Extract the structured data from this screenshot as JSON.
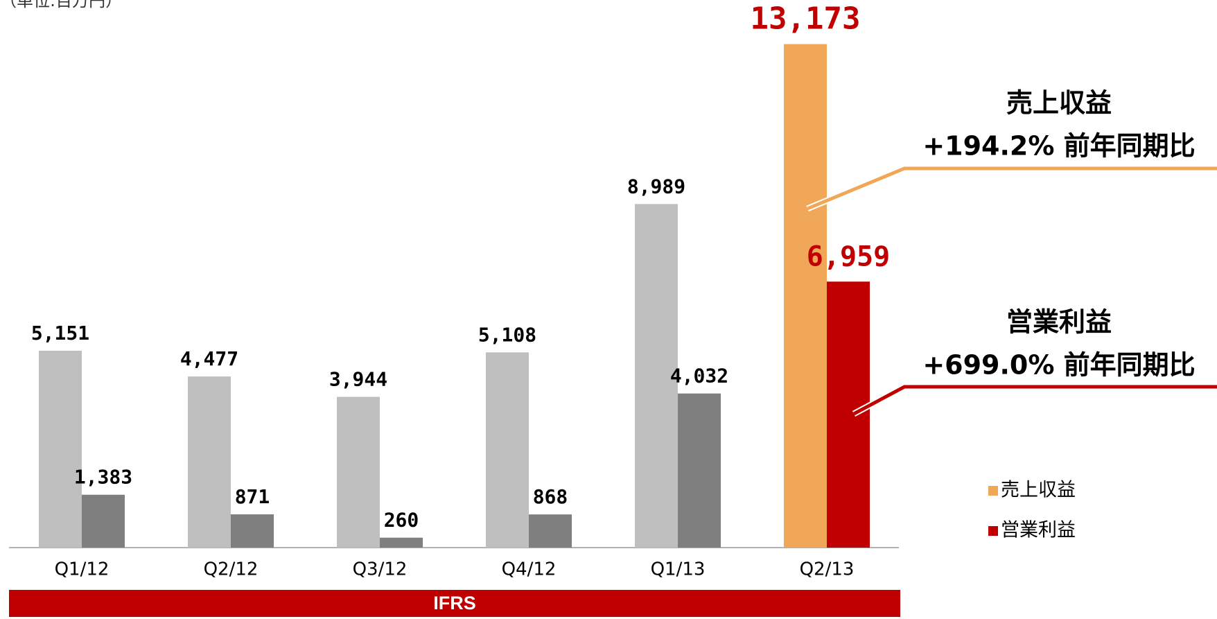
{
  "chart_data": {
    "type": "bar",
    "unit_label": "（単位:百万円）",
    "categories": [
      "Q1/12",
      "Q2/12",
      "Q3/12",
      "Q4/12",
      "Q1/13",
      "Q2/13"
    ],
    "series": [
      {
        "name": "売上収益",
        "color": "#f0a858",
        "colors": [
          "#bfbfbf",
          "#bfbfbf",
          "#bfbfbf",
          "#bfbfbf",
          "#bfbfbf",
          "#f0a858"
        ],
        "label_colors": [
          "#000000",
          "#000000",
          "#000000",
          "#000000",
          "#000000",
          "#c00000"
        ],
        "values": [
          5151,
          4477,
          3944,
          5108,
          8989,
          13173
        ],
        "value_labels": [
          "5,151",
          "4,477",
          "3,944",
          "5,108",
          "8,989",
          "13,173"
        ]
      },
      {
        "name": "営業利益",
        "color": "#c00000",
        "colors": [
          "#7f7f7f",
          "#7f7f7f",
          "#7f7f7f",
          "#7f7f7f",
          "#7f7f7f",
          "#c00000"
        ],
        "label_colors": [
          "#000000",
          "#000000",
          "#000000",
          "#000000",
          "#000000",
          "#c00000"
        ],
        "values": [
          1383,
          871,
          260,
          868,
          4032,
          6959
        ],
        "value_labels": [
          "1,383",
          "871",
          "260",
          "868",
          "4,032",
          "6,959"
        ]
      }
    ],
    "ylim": [
      0,
      14000
    ],
    "annotations": [
      {
        "title": "売上収益",
        "text": "+194.2% 前年同期比",
        "color": "#f0a858"
      },
      {
        "title": "営業利益",
        "text": "+699.0% 前年同期比",
        "color": "#c00000"
      }
    ],
    "band_label": "IFRS",
    "band_color": "#c00000"
  }
}
